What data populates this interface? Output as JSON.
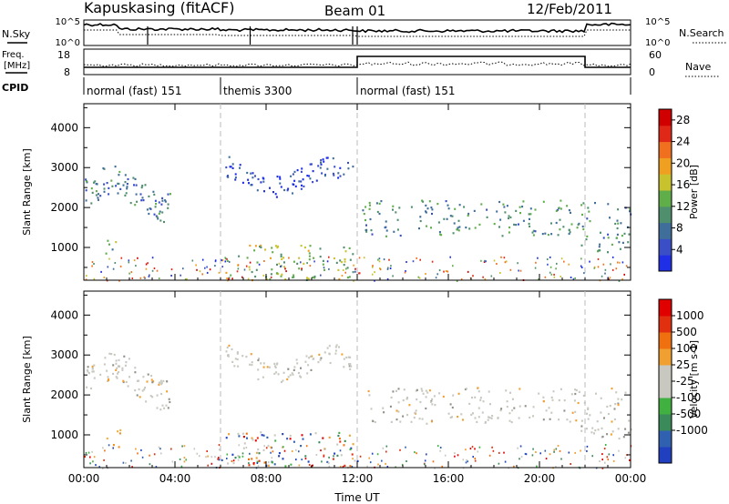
{
  "header": {
    "station": "Kapuskasing (fitACF)",
    "beam": "Beam 01",
    "date": "12/Feb/2011"
  },
  "labels": {
    "nsky": "N.Sky",
    "nsearch": "N.Search",
    "freq_line1": "Freq.",
    "freq_line2": "[MHz]",
    "nave": "Nave",
    "cpid": "CPID",
    "nsky_ticks": [
      "10^5",
      "10^0"
    ],
    "nsearch_ticks": [
      "10^5",
      "10^0"
    ],
    "freq_ticks": [
      "18",
      "8"
    ],
    "nave_ticks": [
      "60",
      "0"
    ]
  },
  "cpid_segments": [
    {
      "label": "normal (fast) 151",
      "start": 0,
      "end": 6
    },
    {
      "label": "themis 3300",
      "start": 6,
      "end": 12
    },
    {
      "label": "normal (fast) 151",
      "start": 12,
      "end": 24
    }
  ],
  "chart_data": [
    {
      "type": "heatmap",
      "title": "Power",
      "xlabel": "",
      "ylabel": "Slant Range [km]",
      "xlim": [
        0,
        24
      ],
      "ylim": [
        180,
        4600
      ],
      "x_ticks": [
        0,
        4,
        8,
        12,
        16,
        20,
        24
      ],
      "y_ticks": [
        1000,
        2000,
        3000,
        4000
      ],
      "y_tick_labels": [
        "1000",
        "2000",
        "3000",
        "4000"
      ],
      "colorbar_label": "Power [dB]",
      "colorbar_ticks": [
        "4",
        "8",
        "12",
        "16",
        "20",
        "24",
        "28"
      ],
      "colorbar_range": [
        0,
        30
      ],
      "colorbar_colors": [
        "#1f2fe6",
        "#3a4ec6",
        "#3f6e9a",
        "#4f8f6e",
        "#5fae4a",
        "#c8c22e",
        "#f0a020",
        "#f07020",
        "#e02818",
        "#d00000"
      ],
      "features": [
        {
          "x_start": 0.0,
          "x_end": 3.8,
          "r_start": 1650,
          "r_end": 3050,
          "level": 8
        },
        {
          "x_start": 0.9,
          "x_end": 1.6,
          "r_start": 750,
          "r_end": 1200,
          "level": 12
        },
        {
          "x_start": 6.2,
          "x_end": 11.8,
          "r_start": 2300,
          "r_end": 3300,
          "level": 4
        },
        {
          "x_start": 6.0,
          "x_end": 12.0,
          "r_start": 200,
          "r_end": 1100,
          "level": 14
        },
        {
          "x_start": 12.2,
          "x_end": 21.8,
          "r_start": 1300,
          "r_end": 2200,
          "level": 10
        },
        {
          "x_start": 21.8,
          "x_end": 24.0,
          "r_start": 900,
          "r_end": 2200,
          "level": 10
        }
      ]
    },
    {
      "type": "heatmap",
      "title": "Velocity",
      "xlabel": "Time UT",
      "ylabel": "Slant Range [km]",
      "xlim": [
        0,
        24
      ],
      "ylim": [
        180,
        4600
      ],
      "x_ticks": [
        0,
        4,
        8,
        12,
        16,
        20,
        24
      ],
      "x_tick_labels": [
        "00:00",
        "04:00",
        "08:00",
        "12:00",
        "16:00",
        "20:00",
        "00:00"
      ],
      "y_ticks": [
        1000,
        2000,
        3000,
        4000
      ],
      "y_tick_labels": [
        "1000",
        "2000",
        "3000",
        "4000"
      ],
      "colorbar_label": "Velocity [m s-1]",
      "colorbar_ticks": [
        "1000",
        "500",
        "100",
        "25",
        "-25",
        "-100",
        "-500",
        "-1000"
      ],
      "colorbar_colors": [
        "#2040c0",
        "#3060b0",
        "#3a8a5a",
        "#40b040",
        "#c8c8c0",
        "#c8c8c0",
        "#f0a030",
        "#f07010",
        "#e03010",
        "#e00000"
      ],
      "features": [
        {
          "x_start": 0.0,
          "x_end": 3.8,
          "r_start": 1650,
          "r_end": 3050,
          "level": 25
        },
        {
          "x_start": 0.9,
          "x_end": 1.6,
          "r_start": 700,
          "r_end": 1250,
          "level": -500
        },
        {
          "x_start": 6.2,
          "x_end": 11.8,
          "r_start": 2300,
          "r_end": 3300,
          "level": 25
        },
        {
          "x_start": 6.0,
          "x_end": 12.0,
          "r_start": 200,
          "r_end": 1100,
          "level": 0
        },
        {
          "x_start": 12.2,
          "x_end": 21.8,
          "r_start": 1300,
          "r_end": 2200,
          "level": 25
        },
        {
          "x_start": 21.8,
          "x_end": 24.0,
          "r_start": 900,
          "r_end": 2200,
          "level": 25
        }
      ]
    }
  ]
}
